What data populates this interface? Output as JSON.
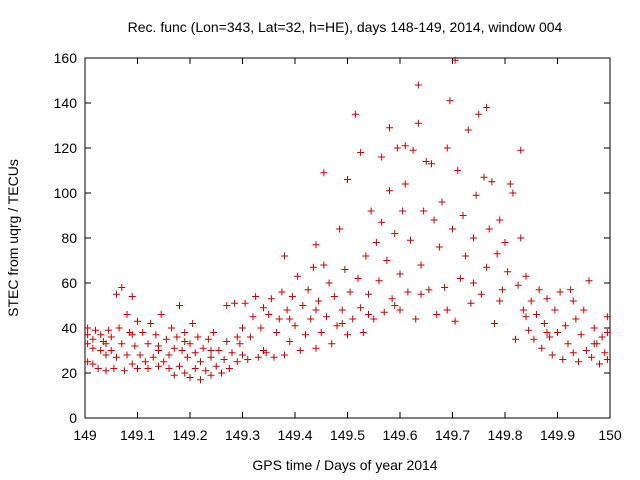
{
  "chart_data": {
    "type": "scatter",
    "title": "Rec. func (Lon=343, Lat=32, h=HE), days 148-149, 2014, window 004",
    "xlabel": "GPS time / Days of year 2014",
    "ylabel": "STEC from uqrg / TECUs",
    "xlim": [
      149,
      150
    ],
    "ylim": [
      0,
      160
    ],
    "x_ticks": [
      149,
      149.1,
      149.2,
      149.3,
      149.4,
      149.5,
      149.6,
      149.7,
      149.8,
      149.9,
      150
    ],
    "x_tick_labels": [
      "149",
      "149.1",
      "149.2",
      "149.3",
      "149.4",
      "149.5",
      "149.6",
      "149.7",
      "149.8",
      "149.9",
      "150"
    ],
    "y_ticks": [
      0,
      20,
      40,
      60,
      80,
      100,
      120,
      140,
      160
    ],
    "y_tick_labels": [
      "0",
      "20",
      "40",
      "60",
      "80",
      "100",
      "120",
      "140",
      "160"
    ],
    "grid": false,
    "marker": "+",
    "marker_color": "#cc0000",
    "points": [
      [
        149.005,
        25
      ],
      [
        149.005,
        33
      ],
      [
        149.005,
        37
      ],
      [
        149.005,
        40
      ],
      [
        149.015,
        24
      ],
      [
        149.015,
        31
      ],
      [
        149.015,
        35
      ],
      [
        149.02,
        39
      ],
      [
        149.025,
        22
      ],
      [
        149.03,
        30
      ],
      [
        149.03,
        37
      ],
      [
        149.035,
        34
      ],
      [
        149.04,
        21
      ],
      [
        149.04,
        28
      ],
      [
        149.045,
        39
      ],
      [
        149.05,
        30
      ],
      [
        149.05,
        36
      ],
      [
        149.055,
        22
      ],
      [
        149.06,
        27
      ],
      [
        149.06,
        55
      ],
      [
        149.065,
        40
      ],
      [
        149.07,
        33
      ],
      [
        149.07,
        58
      ],
      [
        149.075,
        21
      ],
      [
        149.08,
        28
      ],
      [
        149.08,
        46
      ],
      [
        149.085,
        38
      ],
      [
        149.09,
        54
      ],
      [
        149.09,
        24
      ],
      [
        149.095,
        32
      ],
      [
        149.1,
        43
      ],
      [
        149.1,
        22
      ],
      [
        149.105,
        28
      ],
      [
        149.11,
        38
      ],
      [
        149.115,
        25
      ],
      [
        149.12,
        33
      ],
      [
        149.12,
        22
      ],
      [
        149.125,
        42
      ],
      [
        149.13,
        27
      ],
      [
        149.135,
        37
      ],
      [
        149.14,
        23
      ],
      [
        149.14,
        30
      ],
      [
        149.145,
        46
      ],
      [
        149.15,
        25
      ],
      [
        149.155,
        35
      ],
      [
        149.16,
        22
      ],
      [
        149.16,
        28
      ],
      [
        149.165,
        40
      ],
      [
        149.17,
        19
      ],
      [
        149.17,
        31
      ],
      [
        149.175,
        36
      ],
      [
        149.18,
        23
      ],
      [
        149.18,
        50
      ],
      [
        149.185,
        30
      ],
      [
        149.19,
        20
      ],
      [
        149.19,
        38
      ],
      [
        149.195,
        27
      ],
      [
        149.2,
        18
      ],
      [
        149.2,
        33
      ],
      [
        149.205,
        42
      ],
      [
        149.21,
        22
      ],
      [
        149.21,
        29
      ],
      [
        149.215,
        36
      ],
      [
        149.22,
        17
      ],
      [
        149.22,
        25
      ],
      [
        149.225,
        31
      ],
      [
        149.23,
        21
      ],
      [
        149.235,
        35
      ],
      [
        149.24,
        19
      ],
      [
        149.24,
        27
      ],
      [
        149.245,
        38
      ],
      [
        149.25,
        23
      ],
      [
        149.255,
        30
      ],
      [
        149.26,
        20
      ],
      [
        149.265,
        26
      ],
      [
        149.27,
        34
      ],
      [
        149.27,
        50
      ],
      [
        149.275,
        22
      ],
      [
        149.28,
        29
      ],
      [
        149.285,
        51
      ],
      [
        149.29,
        25
      ],
      [
        149.295,
        33
      ],
      [
        149.3,
        40
      ],
      [
        149.3,
        28
      ],
      [
        149.305,
        51
      ],
      [
        149.31,
        26
      ],
      [
        149.315,
        36
      ],
      [
        149.32,
        45
      ],
      [
        149.325,
        54
      ],
      [
        149.33,
        27
      ],
      [
        149.335,
        40
      ],
      [
        149.34,
        49
      ],
      [
        149.345,
        29
      ],
      [
        149.35,
        46
      ],
      [
        149.355,
        53
      ],
      [
        149.36,
        27
      ],
      [
        149.365,
        38
      ],
      [
        149.37,
        44
      ],
      [
        149.375,
        56
      ],
      [
        149.38,
        72
      ],
      [
        149.38,
        28
      ],
      [
        149.385,
        48
      ],
      [
        149.39,
        34
      ],
      [
        149.395,
        54
      ],
      [
        149.4,
        41
      ],
      [
        149.405,
        63
      ],
      [
        149.41,
        30
      ],
      [
        149.415,
        50
      ],
      [
        149.42,
        37
      ],
      [
        149.425,
        57
      ],
      [
        149.43,
        44
      ],
      [
        149.435,
        67
      ],
      [
        149.44,
        31
      ],
      [
        149.44,
        77
      ],
      [
        149.445,
        52
      ],
      [
        149.45,
        38
      ],
      [
        149.455,
        68
      ],
      [
        149.455,
        109
      ],
      [
        149.46,
        45
      ],
      [
        149.465,
        60
      ],
      [
        149.47,
        33
      ],
      [
        149.475,
        54
      ],
      [
        149.48,
        41
      ],
      [
        149.485,
        84
      ],
      [
        149.49,
        48
      ],
      [
        149.495,
        66
      ],
      [
        149.5,
        37
      ],
      [
        149.5,
        106
      ],
      [
        149.505,
        56
      ],
      [
        149.51,
        44
      ],
      [
        149.515,
        135
      ],
      [
        149.52,
        62
      ],
      [
        149.525,
        49
      ],
      [
        149.525,
        118
      ],
      [
        149.53,
        38
      ],
      [
        149.535,
        72
      ],
      [
        149.54,
        55
      ],
      [
        149.545,
        92
      ],
      [
        149.55,
        44
      ],
      [
        149.555,
        78
      ],
      [
        149.56,
        61
      ],
      [
        149.565,
        87
      ],
      [
        149.565,
        116
      ],
      [
        149.57,
        47
      ],
      [
        149.575,
        70
      ],
      [
        149.58,
        101
      ],
      [
        149.58,
        129
      ],
      [
        149.585,
        53
      ],
      [
        149.59,
        82
      ],
      [
        149.595,
        120
      ],
      [
        149.6,
        64
      ],
      [
        149.6,
        48
      ],
      [
        149.605,
        92
      ],
      [
        149.61,
        104
      ],
      [
        149.61,
        121
      ],
      [
        149.615,
        56
      ],
      [
        149.62,
        79
      ],
      [
        149.625,
        119
      ],
      [
        149.63,
        44
      ],
      [
        149.635,
        148
      ],
      [
        149.635,
        131
      ],
      [
        149.64,
        68
      ],
      [
        149.645,
        92
      ],
      [
        149.65,
        114
      ],
      [
        149.655,
        57
      ],
      [
        149.66,
        113
      ],
      [
        149.665,
        88
      ],
      [
        149.67,
        46
      ],
      [
        149.675,
        76
      ],
      [
        149.68,
        96
      ],
      [
        149.685,
        58
      ],
      [
        149.69,
        120
      ],
      [
        149.695,
        141
      ],
      [
        149.7,
        84
      ],
      [
        149.705,
        43
      ],
      [
        149.705,
        159
      ],
      [
        149.71,
        110
      ],
      [
        149.715,
        62
      ],
      [
        149.72,
        90
      ],
      [
        149.725,
        72
      ],
      [
        149.73,
        128
      ],
      [
        149.735,
        51
      ],
      [
        149.74,
        80
      ],
      [
        149.745,
        99
      ],
      [
        149.75,
        135
      ],
      [
        149.755,
        55
      ],
      [
        149.76,
        107
      ],
      [
        149.765,
        138
      ],
      [
        149.765,
        67
      ],
      [
        149.77,
        84
      ],
      [
        149.775,
        105
      ],
      [
        149.78,
        42
      ],
      [
        149.785,
        73
      ],
      [
        149.79,
        88
      ],
      [
        149.795,
        57
      ],
      [
        149.8,
        78
      ],
      [
        149.805,
        65
      ],
      [
        149.81,
        104
      ],
      [
        149.815,
        100
      ],
      [
        149.82,
        35
      ],
      [
        149.825,
        59
      ],
      [
        149.83,
        80
      ],
      [
        149.83,
        119
      ],
      [
        149.835,
        48
      ],
      [
        149.84,
        63
      ],
      [
        149.845,
        39
      ],
      [
        149.85,
        52
      ],
      [
        149.855,
        35
      ],
      [
        149.86,
        46
      ],
      [
        149.865,
        57
      ],
      [
        149.87,
        31
      ],
      [
        149.875,
        42
      ],
      [
        149.88,
        53
      ],
      [
        149.885,
        36
      ],
      [
        149.89,
        28
      ],
      [
        149.895,
        48
      ],
      [
        149.9,
        38
      ],
      [
        149.905,
        56
      ],
      [
        149.91,
        26
      ],
      [
        149.915,
        41
      ],
      [
        149.92,
        33
      ],
      [
        149.925,
        57
      ],
      [
        149.93,
        29
      ],
      [
        149.935,
        44
      ],
      [
        149.94,
        25
      ],
      [
        149.945,
        37
      ],
      [
        149.95,
        48
      ],
      [
        149.955,
        30
      ],
      [
        149.96,
        61
      ],
      [
        149.965,
        27
      ],
      [
        149.97,
        40
      ],
      [
        149.975,
        33
      ],
      [
        149.98,
        24
      ],
      [
        149.985,
        36
      ],
      [
        149.99,
        29
      ],
      [
        149.995,
        45
      ],
      [
        149.995,
        26
      ],
      [
        149.995,
        38
      ],
      [
        149.97,
        33
      ],
      [
        149.93,
        52
      ],
      [
        149.88,
        38
      ],
      [
        149.84,
        45
      ],
      [
        149.79,
        52
      ],
      [
        149.74,
        60
      ],
      [
        149.69,
        48
      ],
      [
        149.64,
        55
      ],
      [
        149.59,
        50
      ],
      [
        149.54,
        46
      ],
      [
        149.49,
        42
      ],
      [
        149.44,
        48
      ],
      [
        149.39,
        44
      ],
      [
        149.34,
        30
      ],
      [
        149.29,
        36
      ],
      [
        149.24,
        30
      ],
      [
        149.19,
        34
      ],
      [
        149.14,
        32
      ],
      [
        149.09,
        37
      ],
      [
        149.04,
        33
      ]
    ]
  }
}
